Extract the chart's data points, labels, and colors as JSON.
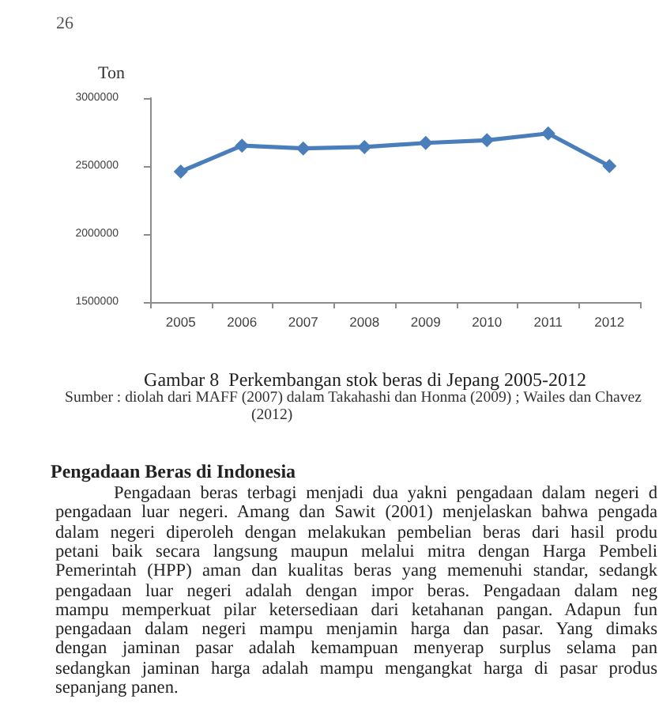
{
  "chart_data": {
    "type": "line",
    "title": "Gambar 8  Perkembangan stok beras di Jepang 2005-2012",
    "ylabel": "Ton",
    "categories": [
      "2005",
      "2006",
      "2007",
      "2008",
      "2009",
      "2010",
      "2011",
      "2012"
    ],
    "values": [
      2460000,
      2650000,
      2630000,
      2640000,
      2670000,
      2690000,
      2740000,
      2500000
    ],
    "color": "#4a7ebb",
    "ylim": [
      1500000,
      3000000
    ],
    "yticks": [
      1500000,
      2000000,
      2500000,
      3000000
    ],
    "grid": false,
    "marker": "diamond",
    "line_style": "solid",
    "annotations": [
      "26",
      "Sumber : diolah dari MAFF (2007) dalam Takahashi dan Honma (2009) ; Wailes dan Chavez (2012)",
      "Pengadaan Beras di Indonesia",
      "Pengadaan beras terbagi menjadi dua yakni pengadaan dalam negeri d",
      "pengadaan luar negeri. Amang dan Sawit (2001) menjelaskan bahwa pengada",
      "dalam negeri diperoleh dengan melakukan pembelian beras dari hasil produ",
      "petani baik secara langsung maupun melalui mitra dengan Harga Pembeli",
      "Pemerintah (HPP) aman dan kualitas beras yang memenuhi standar, sedangk",
      "pengadaan luar negeri adalah dengan impor beras. Pengadaan dalam neg",
      "mampu memperkuat pilar ketersediaan dari ketahanan pangan. Adapun fun",
      "pengadaan dalam negeri mampu menjamin harga dan pasar. Yang dimaks",
      "dengan jaminan pasar adalah kemampuan menyerap surplus selama pan",
      "sedangkan jaminan harga adalah mampu mengangkat harga di pasar produs",
      "sepanjang panen."
    ]
  }
}
